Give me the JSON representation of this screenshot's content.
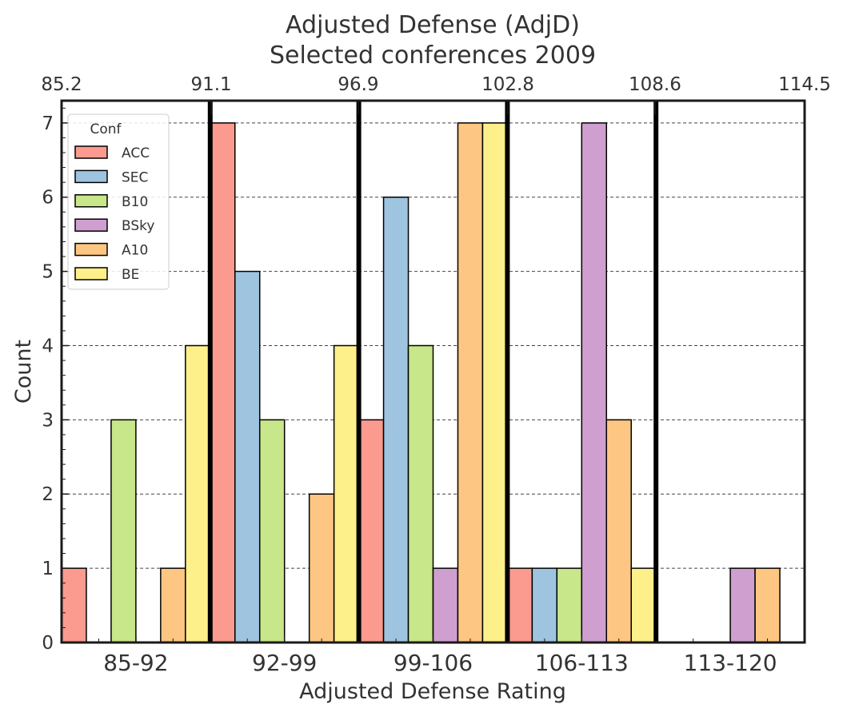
{
  "chart_data": {
    "type": "bar",
    "title": "Adjusted Defense (AdjD)",
    "subtitle": "Selected conferences 2009",
    "xlabel": "Adjusted Defense Rating",
    "ylabel": "Count",
    "ylim": [
      0,
      7.3
    ],
    "yticks": [
      0,
      1,
      2,
      3,
      4,
      5,
      6,
      7
    ],
    "categories": [
      "85-92",
      "92-99",
      "99-106",
      "106-113",
      "113-120"
    ],
    "top_axis": {
      "range": [
        85.2,
        114.5
      ],
      "ticks": [
        "85.2",
        "91.1",
        "96.9",
        "102.8",
        "108.6",
        "114.5"
      ]
    },
    "grid": "horizontal dashed",
    "legend": {
      "title": "Conf",
      "placement": "top-left"
    },
    "series": [
      {
        "name": "ACC",
        "color": "#fb9a8e",
        "values": [
          1,
          7,
          3,
          1,
          0
        ]
      },
      {
        "name": "SEC",
        "color": "#9ec4e0",
        "values": [
          0,
          5,
          6,
          1,
          0
        ]
      },
      {
        "name": "B10",
        "color": "#c8e68a",
        "values": [
          3,
          3,
          4,
          1,
          0
        ]
      },
      {
        "name": "BSky",
        "color": "#cf9fcf",
        "values": [
          0,
          0,
          1,
          7,
          1
        ]
      },
      {
        "name": "A10",
        "color": "#fdc682",
        "values": [
          1,
          2,
          7,
          3,
          1
        ]
      },
      {
        "name": "BE",
        "color": "#fdf08a",
        "values": [
          4,
          4,
          7,
          1,
          0
        ]
      }
    ]
  }
}
